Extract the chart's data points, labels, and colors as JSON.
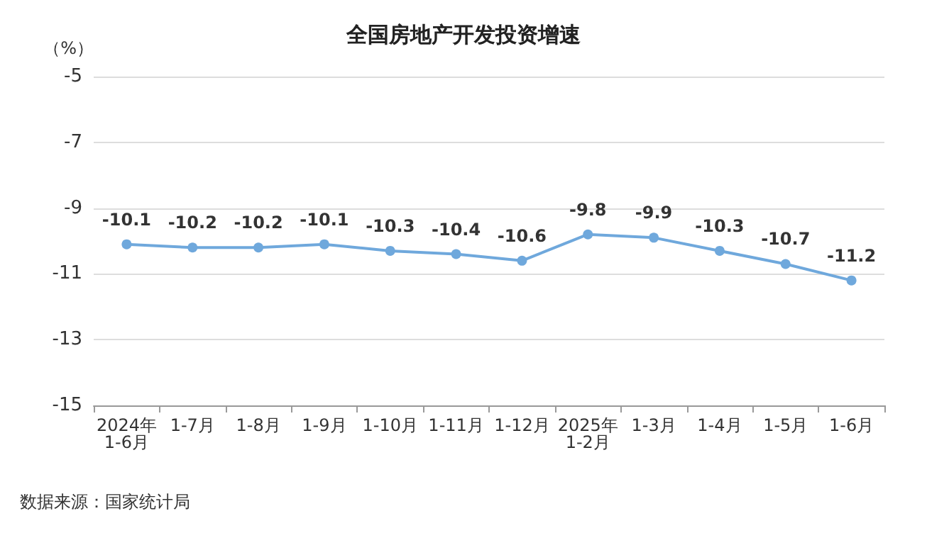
{
  "chart_data": {
    "type": "line",
    "title": "全国房地产开发投资增速",
    "ylabel": "（%）",
    "categories": [
      "2024年\n1-6月",
      "1-7月",
      "1-8月",
      "1-9月",
      "1-10月",
      "1-11月",
      "1-12月",
      "2025年\n1-2月",
      "1-3月",
      "1-4月",
      "1-5月",
      "1-6月"
    ],
    "series": [
      {
        "color": "#6fa8dc",
        "values": [
          -10.1,
          -10.2,
          -10.2,
          -10.1,
          -10.3,
          -10.4,
          -10.6,
          -9.8,
          -9.9,
          -10.3,
          -10.7,
          -11.2
        ]
      }
    ],
    "ylim": [
      -15,
      -5
    ],
    "yticks": [
      -15,
      -13,
      -11,
      -9,
      -7,
      -5
    ],
    "grid": "y",
    "marker": "circle",
    "data_labels": true,
    "annotations": [
      "数据来源：国家统计局"
    ]
  }
}
